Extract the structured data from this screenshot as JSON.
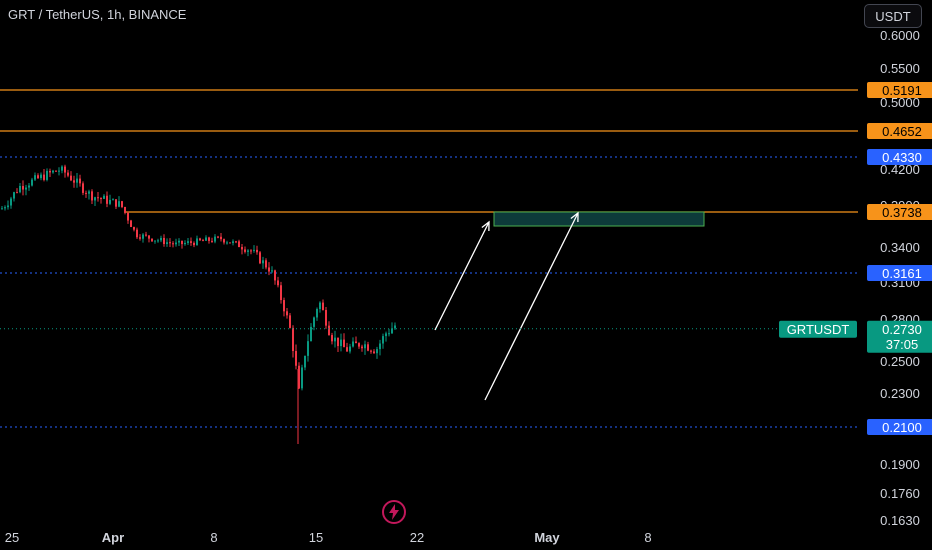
{
  "header": {
    "title": "GRT / TetherUS, 1h, BINANCE",
    "currency_button": "USDT"
  },
  "colors": {
    "background": "#000000",
    "axis_text": "#d1d4dc",
    "resistance": "#f7931a",
    "support": "#2962ff",
    "up": "#089981",
    "down": "#f23645",
    "box_border": "#4caf50",
    "box_fill": "#0d3a3a",
    "arrow": "#ffffff",
    "logo": "#e91e63"
  },
  "chart_data": {
    "type": "candlestick",
    "price_axis": {
      "ticks": [
        "0.6000",
        "0.5500",
        "0.5000",
        "0.4200",
        "0.3900",
        "0.3400",
        "0.3100",
        "0.2800",
        "0.2500",
        "0.2300",
        "0.1900",
        "0.1760",
        "0.1630"
      ]
    },
    "time_axis": {
      "labels": [
        "25",
        "Apr",
        "8",
        "15",
        "22",
        "May",
        "8"
      ],
      "bold_labels": [
        "Apr",
        "May"
      ]
    },
    "levels": [
      {
        "price": "0.5191",
        "kind": "resistance",
        "style": "solid"
      },
      {
        "price": "0.4652",
        "kind": "resistance",
        "style": "solid"
      },
      {
        "price": "0.4330",
        "kind": "support",
        "style": "dotted"
      },
      {
        "price": "0.3738",
        "kind": "resistance",
        "style": "solid"
      },
      {
        "price": "0.3161",
        "kind": "support",
        "style": "dotted"
      },
      {
        "price": "0.2100",
        "kind": "support",
        "style": "dotted"
      }
    ],
    "last_price": {
      "symbol": "GRTUSDT",
      "price": "0.2730",
      "countdown": "37:05"
    },
    "target_zone": {
      "price_low": 0.365,
      "price_high": 0.3738
    },
    "annotations": [
      "two upward arrows pointing into the target zone"
    ],
    "series_trend": "hourly candles: ~0.41 at start, drifting to ~0.34, sharp drop to ~0.20, recovery to ~0.273"
  }
}
